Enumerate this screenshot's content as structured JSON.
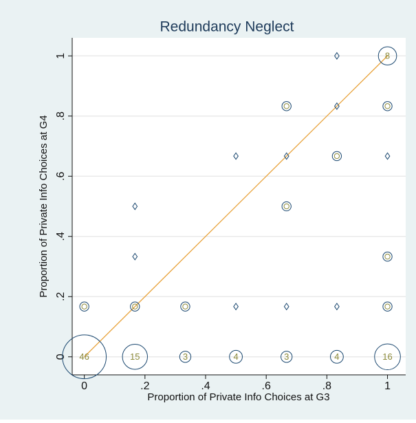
{
  "chart_data": {
    "type": "scatter",
    "title": "Redundancy Neglect",
    "x_label": "Proportion of Private Info Choices at G3",
    "y_label": "Proportion of Private Info Choices at G4",
    "x": [
      0.833,
      1,
      0.667,
      0.833,
      1,
      0.5,
      0.667,
      0.833,
      1,
      0.167,
      0.667,
      0.167,
      1,
      0,
      0.167,
      0.333,
      0.5,
      0.667,
      0.833,
      1,
      0,
      0.167,
      0.333,
      0.5,
      0.667,
      0.833,
      1
    ],
    "y": [
      1,
      1,
      0.833,
      0.833,
      0.833,
      0.667,
      0.667,
      0.667,
      0.667,
      0.5,
      0.5,
      0.333,
      0.333,
      0.167,
      0.167,
      0.167,
      0.167,
      0.167,
      0.167,
      0.167,
      0,
      0,
      0,
      0,
      0,
      0,
      0
    ],
    "sizes": [
      1,
      8,
      2,
      1,
      2,
      1,
      1,
      2,
      1,
      1,
      2,
      1,
      2,
      2,
      2,
      2,
      1,
      1,
      1,
      2,
      46,
      15,
      3,
      4,
      3,
      4,
      16
    ],
    "color": "#1a476f",
    "label_color": "#8c8a3a",
    "reference_line": {
      "x": [
        0,
        1
      ],
      "y": [
        0,
        1
      ],
      "color": "#e8a23a"
    },
    "xlim": [
      -0.04,
      1.06
    ],
    "ylim": [
      -0.06,
      1.06
    ],
    "xticks": [
      0,
      {
        "value": 0.2,
        "label": ".2"
      },
      {
        "value": 0.4,
        "label": ".4"
      },
      {
        "value": 0.6,
        "label": ".6"
      },
      {
        "value": 0.8,
        "label": ".8"
      },
      1
    ],
    "yticks": [
      0,
      {
        "value": 0.2,
        "label": ".2"
      },
      {
        "value": 0.4,
        "label": ".4"
      },
      {
        "value": 0.6,
        "label": ".6"
      },
      {
        "value": 0.8,
        "label": ".8"
      },
      1
    ],
    "grid": true
  }
}
